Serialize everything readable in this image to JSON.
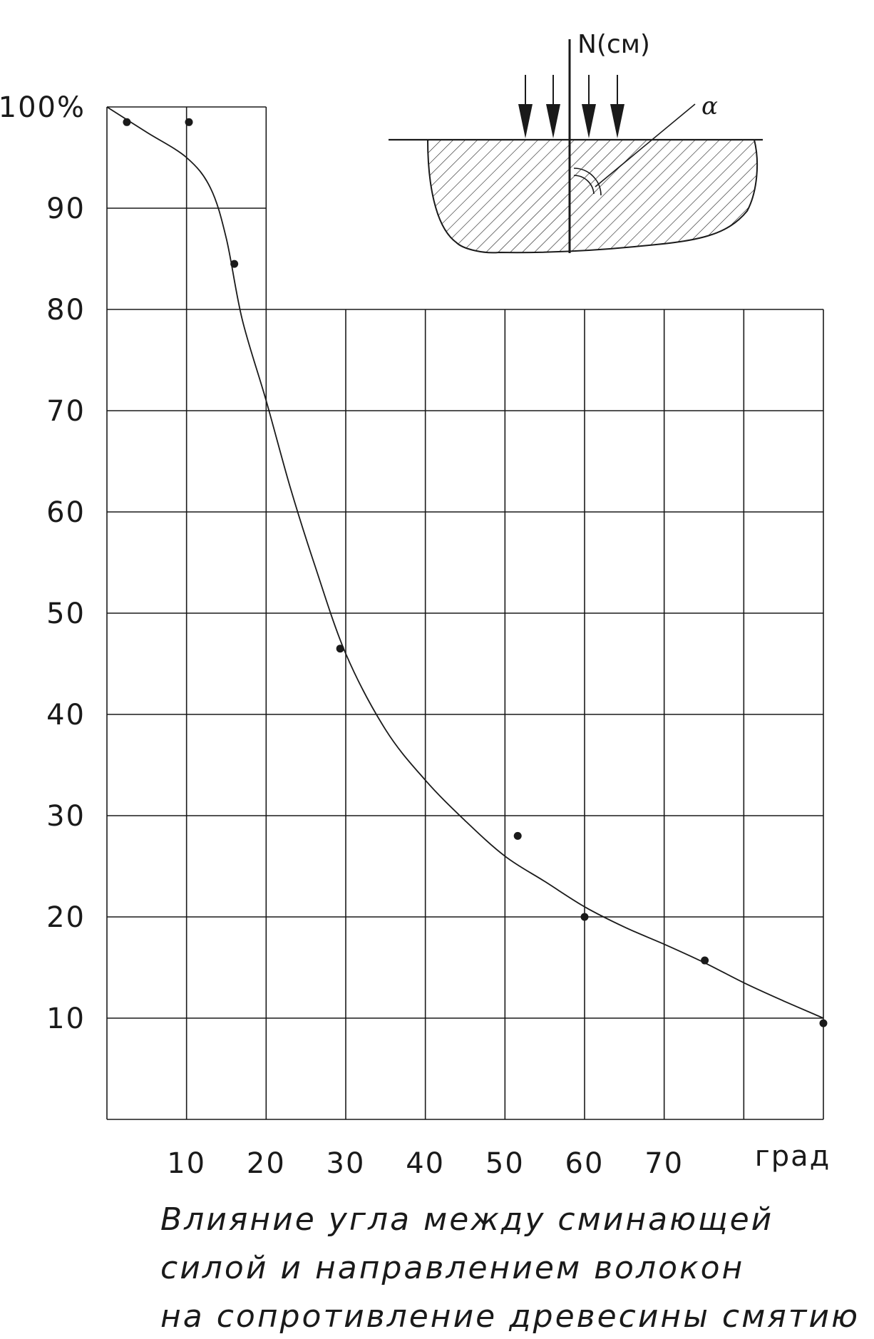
{
  "chart_data": {
    "type": "scatter",
    "y_tick_labels": [
      "100%",
      "90",
      "80",
      "70",
      "60",
      "50",
      "40",
      "30",
      "20",
      "10"
    ],
    "y_ticks": [
      100,
      90,
      80,
      70,
      60,
      50,
      40,
      30,
      20,
      10
    ],
    "x_tick_labels": [
      "10",
      "20",
      "30",
      "40",
      "50",
      "60",
      "70"
    ],
    "x_ticks": [
      10,
      20,
      30,
      40,
      50,
      60,
      70
    ],
    "xlabel": "град",
    "ylabel": "",
    "xlim": [
      0,
      90
    ],
    "ylim": [
      0,
      100
    ],
    "grid": true,
    "points": [
      {
        "x": 2.5,
        "y": 98.5
      },
      {
        "x": 10.3,
        "y": 98.5
      },
      {
        "x": 16,
        "y": 84.5
      },
      {
        "x": 29.3,
        "y": 46.5
      },
      {
        "x": 51.6,
        "y": 28
      },
      {
        "x": 60,
        "y": 20
      },
      {
        "x": 75.1,
        "y": 15.7
      },
      {
        "x": 90,
        "y": 9.5
      }
    ],
    "fit_curve": [
      {
        "x": 0,
        "y": 100
      },
      {
        "x": 5,
        "y": 97.5
      },
      {
        "x": 10,
        "y": 95
      },
      {
        "x": 13,
        "y": 92
      },
      {
        "x": 15,
        "y": 87
      },
      {
        "x": 17,
        "y": 79
      },
      {
        "x": 20,
        "y": 71
      },
      {
        "x": 23,
        "y": 62.5
      },
      {
        "x": 26,
        "y": 55
      },
      {
        "x": 30,
        "y": 46
      },
      {
        "x": 35,
        "y": 38.5
      },
      {
        "x": 40,
        "y": 33.5
      },
      {
        "x": 45,
        "y": 29.5
      },
      {
        "x": 50,
        "y": 26
      },
      {
        "x": 55,
        "y": 23.5
      },
      {
        "x": 60,
        "y": 21
      },
      {
        "x": 65,
        "y": 19
      },
      {
        "x": 70,
        "y": 17.3
      },
      {
        "x": 75,
        "y": 15.5
      },
      {
        "x": 80,
        "y": 13.5
      },
      {
        "x": 85,
        "y": 11.7
      },
      {
        "x": 90,
        "y": 10
      }
    ]
  },
  "inset": {
    "force_label": "N(см)",
    "angle_label": "α"
  },
  "caption": {
    "line1": "Влияние угла между сминающей",
    "line2": "силой и направлением волокон",
    "line3": "на сопротивление древесины смятию"
  }
}
